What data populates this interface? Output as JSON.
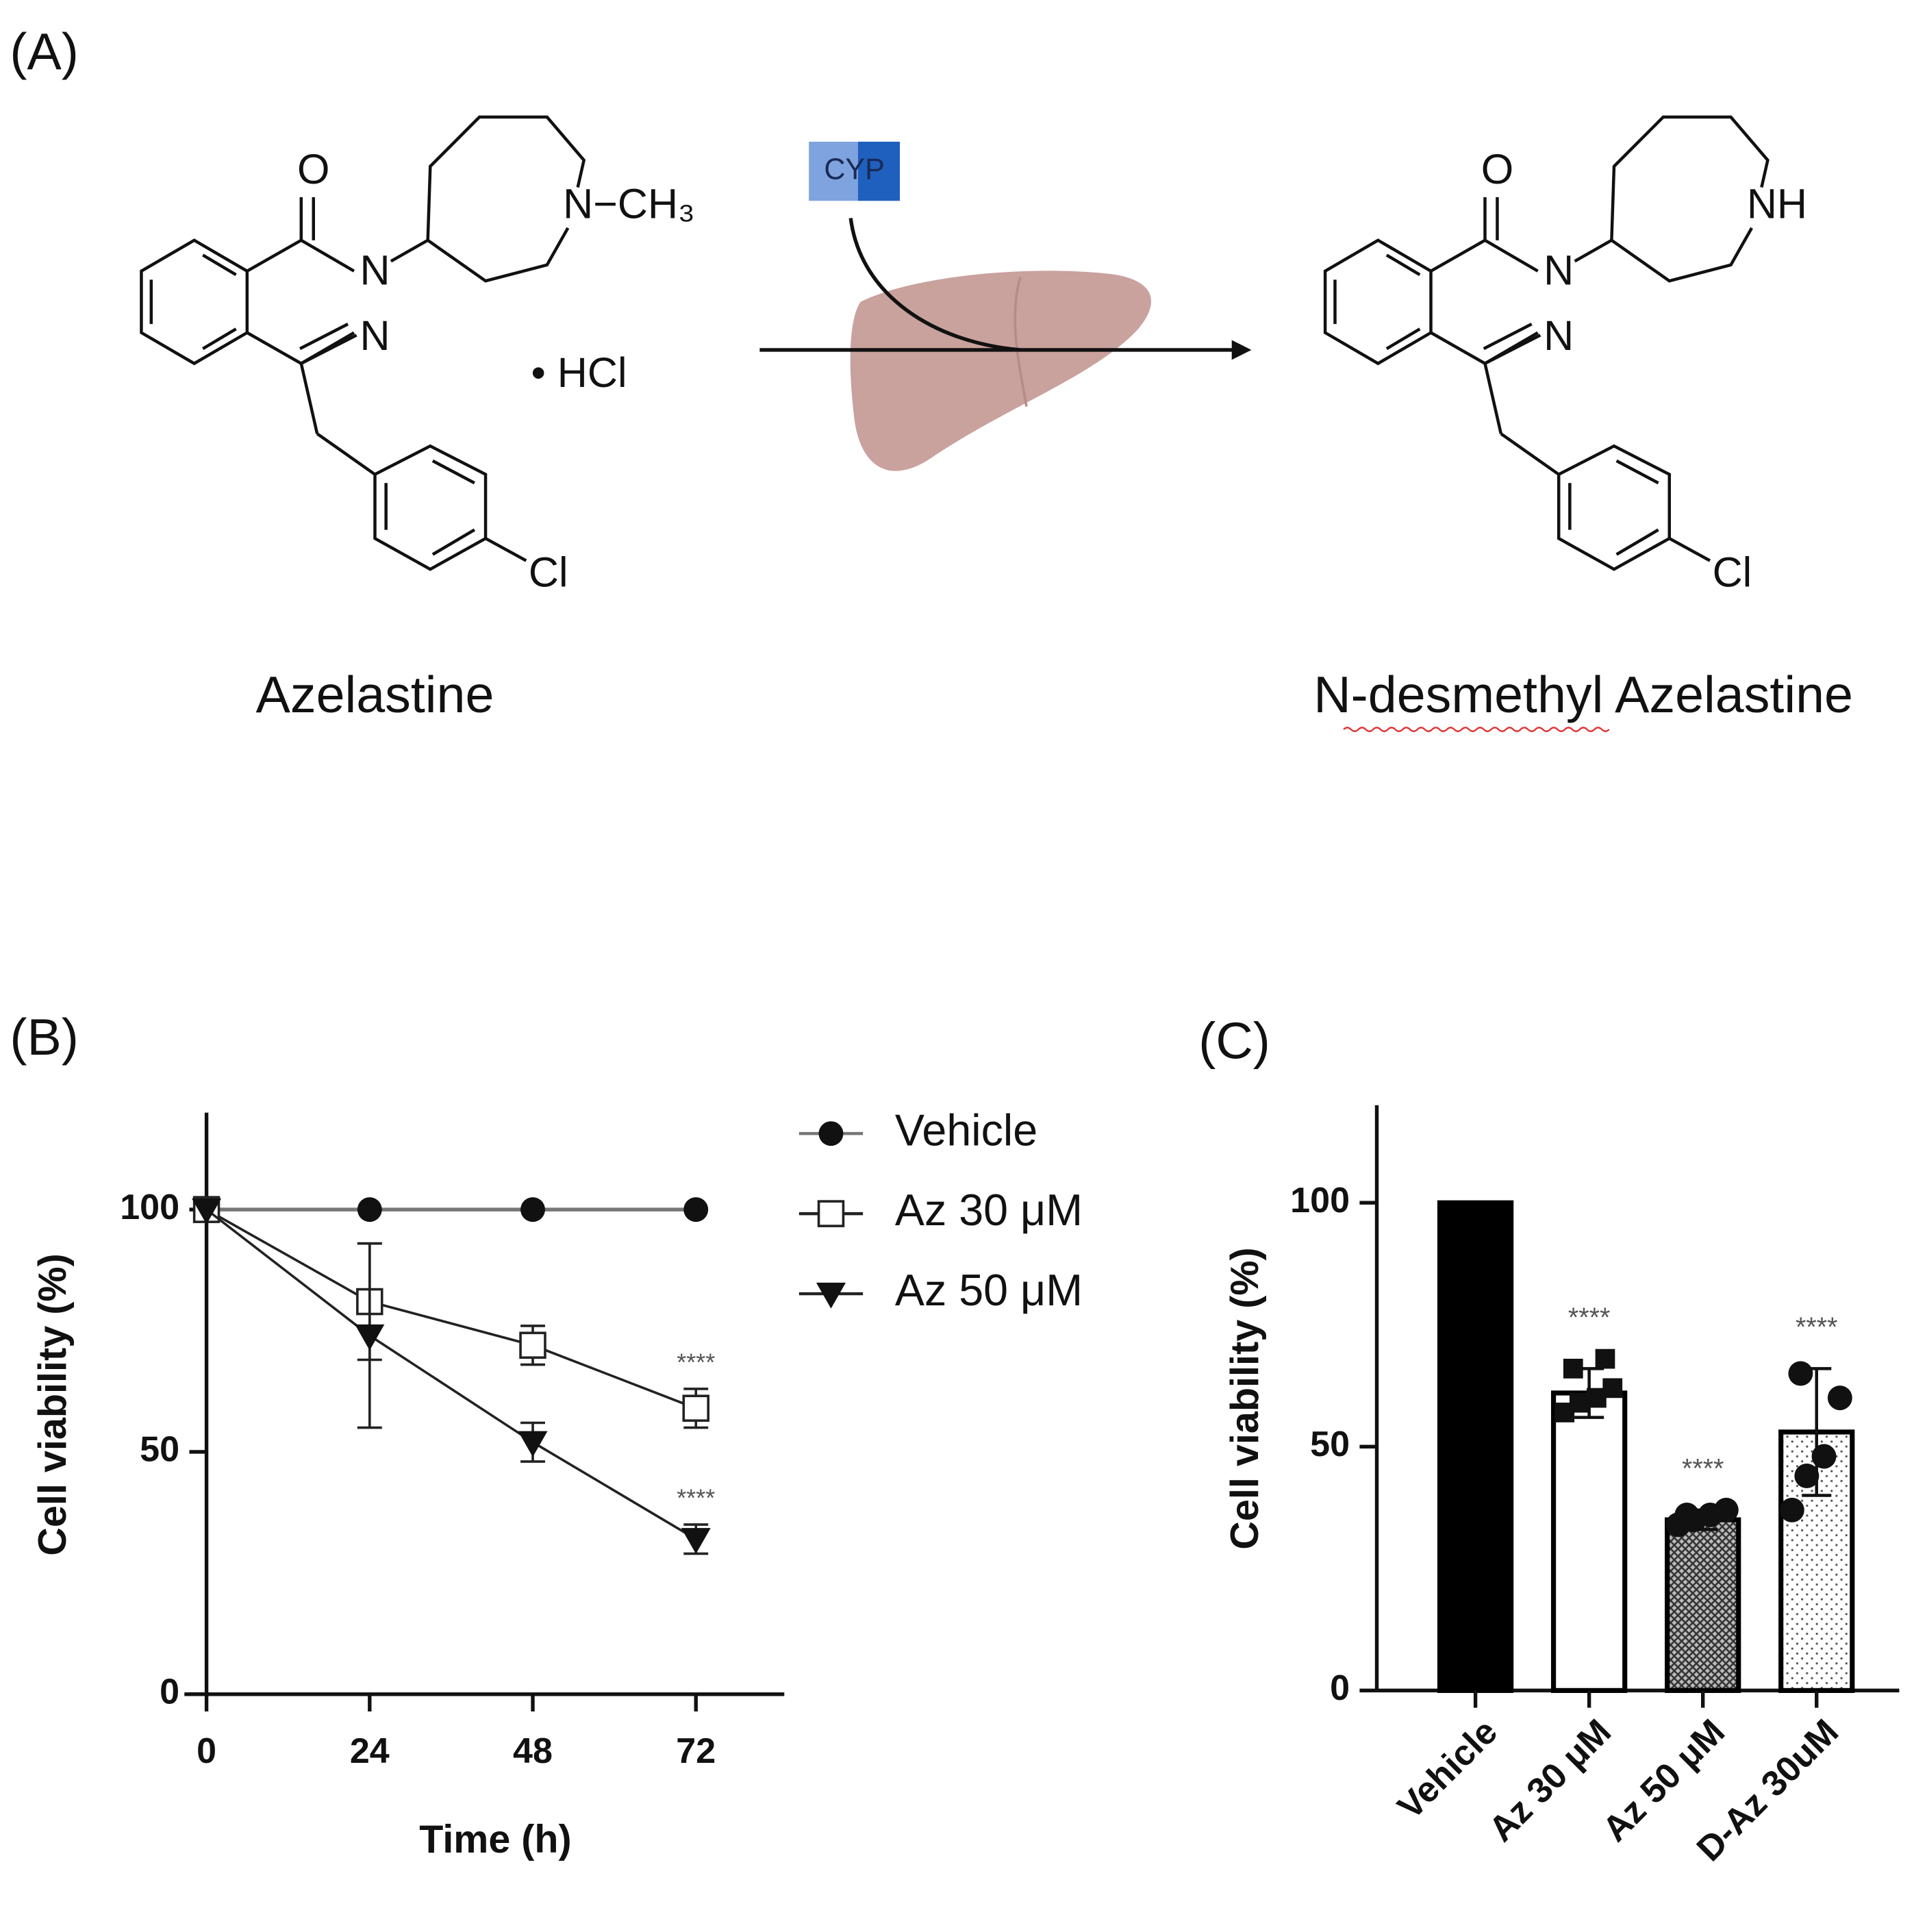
{
  "panel_a": {
    "label": "(A)",
    "reactant": {
      "name": "Azelastine",
      "atoms": [
        "O",
        "N",
        "N",
        "N−CH₃",
        "Cl"
      ],
      "salt": "• HCl"
    },
    "enzyme": "CYP",
    "product": {
      "name": "N-desmethyl Azelastine",
      "atoms": [
        "O",
        "N",
        "N",
        "NH",
        "Cl"
      ]
    }
  },
  "chart_data": [
    {
      "type": "line",
      "panel": "(B)",
      "xlabel": "Time (h)",
      "ylabel": "Cell viability (%)",
      "x": [
        0,
        24,
        48,
        72
      ],
      "xlim": [
        0,
        85
      ],
      "xticks": [
        0,
        24,
        48,
        72
      ],
      "ylim": [
        0,
        120
      ],
      "yticks": [
        0,
        50,
        100
      ],
      "series": [
        {
          "name": "Vehicle",
          "color": "#777777",
          "marker": "filled-circle",
          "values": [
            100,
            100,
            100,
            100
          ],
          "errors": [
            0,
            0,
            0,
            0
          ]
        },
        {
          "name": "Az 30 μM",
          "color": "#222222",
          "marker": "open-square",
          "values": [
            100,
            81,
            72,
            59
          ],
          "errors": [
            0,
            12,
            4,
            4
          ]
        },
        {
          "name": "Az 50 μM",
          "color": "#222222",
          "marker": "filled-triangle-down",
          "values": [
            100,
            74,
            52,
            32
          ],
          "errors": [
            0,
            19,
            4,
            3
          ]
        }
      ],
      "annotations": [
        null,
        "****",
        "****"
      ]
    },
    {
      "type": "bar",
      "panel": "(C)",
      "ylabel": "Cell viability (%)",
      "categories": [
        "Vehicle",
        "Az 30 μM",
        "Az 50 μM",
        "D-Az 30uM"
      ],
      "values": [
        100,
        61,
        35,
        53
      ],
      "errors": [
        null,
        5,
        2,
        13
      ],
      "points": [
        [],
        [
          57,
          59,
          60,
          62,
          66,
          68
        ],
        [
          34,
          35,
          36,
          37,
          36
        ],
        [
          37,
          44,
          48,
          60,
          65
        ]
      ],
      "point_markers": [
        "circle",
        "square",
        "circle",
        "circle"
      ],
      "fills": [
        "solid-black",
        "white",
        "crosshatch",
        "dots"
      ],
      "ylim": [
        0,
        120
      ],
      "yticks": [
        0,
        50,
        100
      ],
      "annotations": [
        null,
        "****",
        "****",
        "****"
      ]
    }
  ]
}
